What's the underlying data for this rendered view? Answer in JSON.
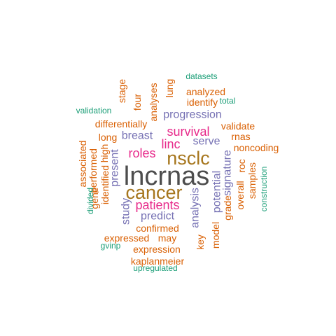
{
  "colors": {
    "dark_gray": "#4d4d4d",
    "brown": "#a6761d",
    "magenta": "#e7298a",
    "purple": "#7570b3",
    "orange": "#d95f02",
    "teal": "#1b9e77"
  },
  "words": [
    {
      "text": "lncrnas",
      "color": "dark_gray"
    },
    {
      "text": "cancer",
      "color": "brown"
    },
    {
      "text": "nsclc",
      "color": "brown"
    },
    {
      "text": "patients",
      "color": "magenta"
    },
    {
      "text": "survival",
      "color": "magenta"
    },
    {
      "text": "linc",
      "color": "magenta"
    },
    {
      "text": "roles",
      "color": "magenta"
    },
    {
      "text": "progression",
      "color": "purple"
    },
    {
      "text": "breast",
      "color": "purple"
    },
    {
      "text": "serve",
      "color": "purple"
    },
    {
      "text": "present",
      "color": "purple"
    },
    {
      "text": "predict",
      "color": "purple"
    },
    {
      "text": "study",
      "color": "purple"
    },
    {
      "text": "analysis",
      "color": "purple"
    },
    {
      "text": "potential",
      "color": "purple"
    },
    {
      "text": "signature",
      "color": "purple"
    },
    {
      "text": "analyzed",
      "color": "orange"
    },
    {
      "text": "identify",
      "color": "orange"
    },
    {
      "text": "validate",
      "color": "orange"
    },
    {
      "text": "rnas",
      "color": "orange"
    },
    {
      "text": "noncoding",
      "color": "orange"
    },
    {
      "text": "differentially",
      "color": "orange"
    },
    {
      "text": "long",
      "color": "orange"
    },
    {
      "text": "high",
      "color": "orange"
    },
    {
      "text": "performed",
      "color": "orange"
    },
    {
      "text": "associated",
      "color": "orange"
    },
    {
      "text": "identified",
      "color": "orange"
    },
    {
      "text": "gene",
      "color": "orange"
    },
    {
      "text": "confirmed",
      "color": "orange"
    },
    {
      "text": "expressed",
      "color": "orange"
    },
    {
      "text": "may",
      "color": "orange"
    },
    {
      "text": "expression",
      "color": "orange"
    },
    {
      "text": "kaplanmeier",
      "color": "orange"
    },
    {
      "text": "key",
      "color": "orange"
    },
    {
      "text": "model",
      "color": "orange"
    },
    {
      "text": "grade",
      "color": "orange"
    },
    {
      "text": "overall",
      "color": "orange"
    },
    {
      "text": "roc",
      "color": "orange"
    },
    {
      "text": "samples",
      "color": "orange"
    },
    {
      "text": "stage",
      "color": "orange"
    },
    {
      "text": "four",
      "color": "orange"
    },
    {
      "text": "analyses",
      "color": "orange"
    },
    {
      "text": "lung",
      "color": "orange"
    },
    {
      "text": "datasets",
      "color": "teal"
    },
    {
      "text": "total",
      "color": "teal"
    },
    {
      "text": "validation",
      "color": "teal"
    },
    {
      "text": "divided",
      "color": "teal"
    },
    {
      "text": "gvinp",
      "color": "teal"
    },
    {
      "text": "upregulated",
      "color": "teal"
    },
    {
      "text": "construction",
      "color": "teal"
    }
  ]
}
